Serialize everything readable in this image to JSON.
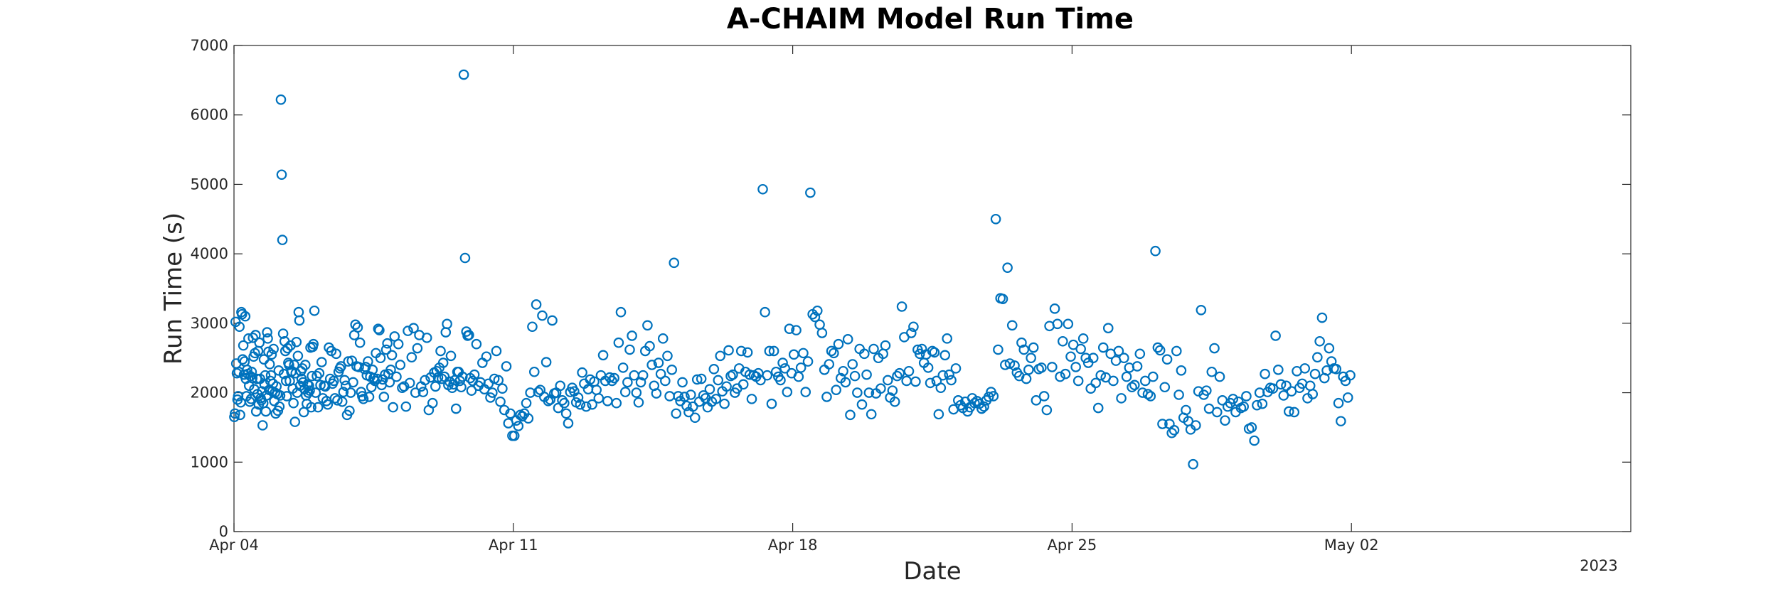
{
  "chart_data": {
    "type": "scatter",
    "title": "A-CHAIM Model Run Time",
    "xlabel": "Date",
    "ylabel": "Run Time (s)",
    "year_label": "2023",
    "ylim": [
      0,
      7000
    ],
    "yticks": [
      0,
      1000,
      2000,
      3000,
      4000,
      5000,
      6000,
      7000
    ],
    "xlim": [
      "2023-04-04",
      "2023-05-09"
    ],
    "xticks": [
      {
        "date": "2023-04-04",
        "label": "Apr 04"
      },
      {
        "date": "2023-04-11",
        "label": "Apr 11"
      },
      {
        "date": "2023-04-18",
        "label": "Apr 18"
      },
      {
        "date": "2023-04-25",
        "label": "Apr 25"
      },
      {
        "date": "2023-05-02",
        "label": "May 02"
      }
    ],
    "grid": false,
    "marker": "open-circle",
    "color": "#0072BD",
    "series": [
      {
        "x": [
          "2023-04-04",
          "2023-04-05",
          "2023-04-06",
          "2023-04-07",
          "2023-04-08",
          "2023-04-09",
          "2023-04-10",
          "2023-04-11",
          "2023-04-12",
          "2023-04-13",
          "2023-04-14",
          "2023-04-15",
          "2023-04-16",
          "2023-04-17",
          "2023-04-18",
          "2023-04-19",
          "2023-04-20",
          "2023-04-21",
          "2023-04-22",
          "2023-04-23",
          "2023-04-24",
          "2023-04-25",
          "2023-04-26",
          "2023-04-27",
          "2023-04-28",
          "2023-04-29",
          "2023-04-30",
          "2023-05-01",
          "2023-05-02",
          "2023-05-03",
          "2023-05-04",
          "2023-05-05"
        ],
        "values_note_free": true,
        "y": [
          [
            1650,
            1700,
            3020,
            2420,
            2280,
            1900,
            1950,
            2300,
            2950,
            1680,
            1860,
            3160,
            3130,
            2480,
            2680,
            2260,
            2450,
            3100,
            2200,
            1950,
            2330,
            2270,
            2780,
            2100,
            1870,
            2240,
            1910,
            2300,
            2210,
            2790,
            2520,
            2050,
            2570,
            2830,
            1730,
            2200,
            1980,
            2600,
            1830,
            2720,
            2200,
            1920,
            1890,
            2020,
            1530,
            1850,
            2480,
            2120,
            2250,
            1730,
            1960,
            2870,
            2780,
            2590,
            2040,
            2410,
            2170,
            2250,
            2550,
            2020,
            2130,
            2630
          ],
          [
            1880,
            2000,
            1700,
            2090,
            1980,
            1740,
            2320,
            1800,
            1960,
            6220,
            5140,
            4200,
            2850,
            2270,
            2740,
            2600,
            2170,
            1950,
            2640,
            2430,
            2400,
            2170,
            2680,
            2300,
            2310,
            2060,
            1850,
            2400,
            1580,
            2280,
            2730,
            2000,
            2530,
            3160,
            3040,
            2100,
            2310,
            2200,
            2350,
            2150,
            1720,
            2050,
            2400,
            1960,
            1840,
            2120,
            2000,
            2100,
            2030,
            2650,
            1790,
            2240,
            2660,
            2700
          ],
          [
            3180,
            2000,
            2240,
            1790,
            2280,
            2110,
            2440,
            1920,
            2100,
            2090,
            1880,
            1830,
            2650,
            2200,
            2600,
            2130,
            2170,
            1920,
            2560,
            1890,
            2300,
            2350,
            2380,
            1870,
            2010,
            2180,
            2100,
            1680,
            2450,
            1740,
            2000,
            2460,
            2150
          ],
          [
            2830,
            2980,
            2380,
            2940,
            2370,
            2720,
            2010,
            1950,
            1910,
            2340,
            2370,
            2250,
            2450,
            1940,
            2230,
            2080,
            2330,
            2210,
            2170,
            2570,
            2200,
            2920,
            2900,
            2500,
            2110,
            2190,
            1940,
            2260,
            2620,
            2710,
            2270,
            2150,
            2330,
            2540,
            1790
          ],
          [
            2810,
            2230,
            2700,
            2400,
            2070,
            2090,
            1800,
            2890,
            2140,
            2510,
            2930,
            2000,
            2640,
            2830,
            2090,
            2010,
            2180,
            2790,
            1750,
            2220,
            1850
          ],
          [
            2290,
            2090,
            2310,
            2220,
            2360,
            2600,
            2200,
            2430,
            2230,
            2870,
            2990,
            2110,
            2160,
            2530,
            2070,
            2120,
            2180,
            1770,
            2300,
            2300,
            2170,
            2080,
            2230,
            6580,
            3940,
            2880,
            2820,
            2830,
            2210,
            2030,
            2170
          ],
          [
            2260,
            2700,
            2100,
            2150,
            2430,
            2050,
            2520,
            2130,
            1930,
            2000,
            2200,
            2600,
            2180,
            1870,
            2060,
            1750,
            2380,
            1560,
            1700,
            1380
          ],
          [
            1380,
            1600,
            1520,
            1680,
            1660,
            1700,
            1850,
            1630,
            2000,
            2950,
            2300,
            3270,
            2010,
            2040,
            3110,
            1940,
            2440,
            1880,
            1900,
            3040
          ],
          [
            1990,
            2000,
            1780,
            2100,
            1890,
            1850,
            1700,
            1560,
            2010,
            2070,
            2020,
            1860,
            1930,
            1830,
            2290,
            2130,
            1800,
            2050,
            2190,
            1830
          ],
          [
            2160,
            2040,
            1920,
            2250,
            2540,
            2170,
            1880,
            2220,
            2170,
            2210,
            1850,
            2720,
            3160,
            2360,
            2010,
            2150,
            2620,
            2820
          ],
          [
            2250,
            2000,
            1860,
            2150,
            2250,
            2600,
            2970,
            2670,
            2400,
            2100,
            1990,
            2430,
            2270,
            2780,
            2170,
            2530,
            1950,
            2330
          ],
          [
            3870,
            1700,
            1950,
            1880,
            2150,
            1940,
            1810,
            1720,
            1970,
            1800,
            1640,
            2190,
            1870,
            2200,
            1960,
            1920,
            1790,
            2050,
            1870
          ],
          [
            2340,
            1910,
            2180,
            2530,
            2020,
            1840,
            2090,
            2610,
            2240,
            2260,
            2000,
            2060,
            2350,
            2600,
            2120,
            2300,
            2580,
            2260,
            1910
          ],
          [
            2250,
            2230,
            2280,
            2180,
            4930,
            3160,
            2250,
            2600,
            1840,
            2600,
            2300,
            2230,
            2180,
            2430,
            2350,
            2010,
            2920,
            2280
          ],
          [
            2550,
            2900,
            2230,
            2360,
            2570,
            2010,
            2450,
            4880,
            3130,
            3090,
            3180,
            2980,
            2860,
            2330,
            1940,
            2410,
            2600
          ],
          [
            2570,
            2040,
            2700,
            2210,
            2310,
            2150,
            2770,
            1680,
            2410,
            2240,
            2000,
            2630,
            1830,
            2560,
            2260,
            2000,
            1690
          ],
          [
            2630,
            1990,
            2500,
            2060,
            2560,
            2680,
            2180,
            1930,
            2030,
            1870,
            2240,
            2280,
            3240,
            2800,
            2170,
            2310,
            2860
          ],
          [
            2950,
            2160,
            2620,
            2560,
            2630,
            2430,
            2550,
            2360,
            2140,
            2600,
            2580,
            2170,
            1690,
            2070,
            2250,
            2540,
            2780,
            2260,
            2180
          ],
          [
            1760,
            2350,
            1890,
            1820,
            1780,
            1870,
            1730,
            1790,
            1920,
            1850,
            1880,
            1840,
            1770,
            1800,
            1890,
            1940,
            2010
          ],
          [
            1950,
            4500,
            2620,
            3360,
            3350,
            2400,
            3800,
            2420,
            2970,
            2390,
            2290,
            2240,
            2720,
            2620,
            2200,
            2330,
            2500
          ],
          [
            2650,
            1890,
            2340,
            2360,
            1950,
            1750,
            2960,
            2370,
            3210,
            2990,
            2230,
            2740,
            2270,
            2990,
            2520
          ],
          [
            2690,
            2370,
            2170,
            2630,
            2780,
            2500,
            2430,
            2060,
            2500,
            2140,
            1780,
            2250,
            2650,
            2220,
            2930,
            2560
          ],
          [
            2170,
            2460,
            2600,
            1920,
            2500,
            2230,
            2360,
            2080,
            2110,
            2380,
            2560,
            2000,
            2170,
            1980,
            1950
          ],
          [
            2230,
            4040,
            2650,
            2610,
            1550,
            2080,
            2480,
            1550,
            1420,
            1460,
            2600,
            1970,
            2320,
            1640,
            1750,
            1590,
            1470
          ],
          [
            970,
            1530,
            2020,
            3190,
            1970,
            2030,
            1770,
            2300,
            2640,
            1720,
            2230,
            1890,
            1600,
            1800,
            1850
          ],
          [
            1910,
            1720,
            1870,
            1780,
            1800,
            1950,
            1480,
            1500,
            1310,
            1820,
            2000,
            1840,
            2270,
            2010,
            2070
          ],
          [
            2060,
            2820,
            2330,
            2120,
            1960,
            2100,
            1730,
            2020,
            1720,
            2310,
            2070,
            2130,
            2350,
            1920,
            2100
          ],
          [
            1980,
            2270,
            2510,
            2740,
            3080,
            2210,
            2320,
            2640,
            2450,
            2350,
            2340,
            1850,
            1590,
            2230,
            2170,
            1930,
            2250
          ],
          [],
          [],
          [],
          []
        ]
      }
    ]
  }
}
